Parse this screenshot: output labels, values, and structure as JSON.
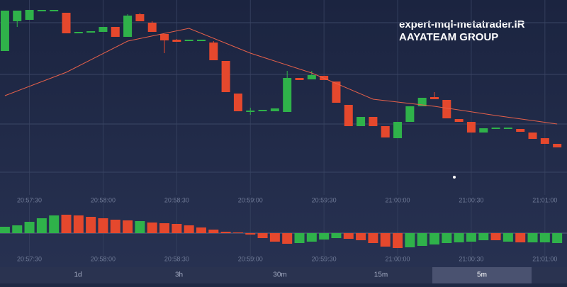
{
  "chart_data": [
    {
      "type": "candlestick",
      "annotations": [
        "expert-mql-metatrader.IR",
        "AAYATEAM GROUP"
      ],
      "x": [
        75440,
        75445,
        75450,
        75455,
        75460,
        75465,
        75470,
        75475,
        75480,
        75485,
        75490,
        75495,
        75500,
        75505,
        75510,
        75515,
        75520,
        75525,
        75530,
        75535,
        75540,
        75545,
        75550,
        75555,
        75560,
        75565,
        75570,
        75575,
        75580,
        75585,
        75590,
        75595,
        75600,
        75605,
        75610,
        75615,
        75620,
        75625,
        75630,
        75635,
        75640,
        75645,
        75650,
        75655,
        75660,
        75665
      ],
      "open": [
        228,
        270,
        272,
        285,
        285,
        282,
        254,
        255,
        255,
        262,
        248,
        280,
        268,
        252,
        244,
        243,
        243,
        240,
        214,
        168,
        143,
        144,
        143,
        142,
        190,
        188,
        193,
        185,
        152,
        122,
        135,
        122,
        105,
        128,
        150,
        163,
        159,
        132,
        128,
        113,
        119,
        119,
        118,
        113,
        105,
        97
      ],
      "high": [
        285,
        285,
        286,
        285,
        285,
        282,
        254,
        255,
        262,
        262,
        280,
        282,
        270,
        252,
        245,
        243,
        243,
        242,
        214,
        168,
        148,
        144,
        147,
        200,
        190,
        200,
        193,
        185,
        152,
        135,
        135,
        122,
        128,
        150,
        162,
        170,
        159,
        132,
        128,
        119,
        119,
        119,
        118,
        113,
        105,
        97
      ],
      "low": [
        228,
        262,
        272,
        285,
        285,
        253,
        254,
        255,
        255,
        248,
        248,
        270,
        255,
        225,
        241,
        243,
        243,
        215,
        170,
        143,
        138,
        144,
        143,
        142,
        187,
        188,
        187,
        155,
        122,
        122,
        122,
        106,
        105,
        128,
        150,
        160,
        133,
        128,
        113,
        113,
        119,
        119,
        114,
        104,
        97,
        92
      ],
      "close": [
        285,
        285,
        286,
        285,
        285,
        253,
        254,
        255,
        262,
        248,
        278,
        270,
        255,
        243,
        241,
        243,
        243,
        215,
        170,
        143,
        144,
        144,
        147,
        190,
        187,
        194,
        187,
        155,
        122,
        135,
        122,
        106,
        128,
        150,
        162,
        160,
        133,
        128,
        113,
        119,
        119,
        119,
        114,
        104,
        97,
        92
      ],
      "up_color": "#2fb24a",
      "down_color": "#e5482d",
      "ma": {
        "color": "#e5604a",
        "x": [
          75440,
          75465,
          75490,
          75515,
          75540,
          75565,
          75590,
          75615,
          75640,
          75665
        ],
        "values": [
          165,
          198,
          242,
          260,
          225,
          197,
          160,
          150,
          137,
          125
        ]
      },
      "xlim": [
        75438,
        75669
      ],
      "ylim": [
        25,
        300
      ],
      "xticks": [
        {
          "value": 75450,
          "label": "20:57:30"
        },
        {
          "value": 75480,
          "label": "20:58:00"
        },
        {
          "value": 75510,
          "label": "20:58:30"
        },
        {
          "value": 75540,
          "label": "20:59:00"
        },
        {
          "value": 75570,
          "label": "20:59:30"
        },
        {
          "value": 75600,
          "label": "21:00:00"
        },
        {
          "value": 75630,
          "label": "21:00:30"
        },
        {
          "value": 75660,
          "label": "21:01:00"
        }
      ],
      "ygrid": [
        268,
        195,
        125,
        57
      ]
    },
    {
      "type": "bar",
      "x": [
        75440,
        75445,
        75450,
        75455,
        75460,
        75465,
        75470,
        75475,
        75480,
        75485,
        75490,
        75495,
        75500,
        75505,
        75510,
        75515,
        75520,
        75525,
        75530,
        75535,
        75540,
        75545,
        75550,
        75555,
        75560,
        75565,
        75570,
        75575,
        75580,
        75585,
        75590,
        75595,
        75600,
        75605,
        75610,
        75615,
        75620,
        75625,
        75630,
        75635,
        75640,
        75645,
        75650,
        75655,
        75660,
        75665
      ],
      "values": [
        9,
        11,
        16,
        21,
        25,
        26,
        25,
        23,
        21,
        19,
        18,
        17,
        15,
        14,
        13,
        11,
        8,
        5,
        2,
        1,
        -2,
        -7,
        -12,
        -15,
        -14,
        -12,
        -9,
        -7,
        -8,
        -10,
        -14,
        -19,
        -21,
        -20,
        -18,
        -16,
        -14,
        -13,
        -12,
        -10,
        -10,
        -12,
        -13,
        -13,
        -13,
        -14
      ],
      "colors": [
        "#2fb24a",
        "#2fb24a",
        "#2fb24a",
        "#2fb24a",
        "#2fb24a",
        "#e5482d",
        "#e5482d",
        "#e5482d",
        "#e5482d",
        "#e5482d",
        "#e5482d",
        "#2fb24a",
        "#e5482d",
        "#e5482d",
        "#e5482d",
        "#e5482d",
        "#e5482d",
        "#e5482d",
        "#e5482d",
        "#e5482d",
        "#e5482d",
        "#e5482d",
        "#e5482d",
        "#e5482d",
        "#2fb24a",
        "#2fb24a",
        "#2fb24a",
        "#2fb24a",
        "#e5482d",
        "#e5482d",
        "#e5482d",
        "#e5482d",
        "#e5482d",
        "#2fb24a",
        "#2fb24a",
        "#2fb24a",
        "#2fb24a",
        "#2fb24a",
        "#2fb24a",
        "#2fb24a",
        "#e5482d",
        "#2fb24a",
        "#e5482d",
        "#2fb24a",
        "#2fb24a",
        "#2fb24a"
      ],
      "xlim": [
        75438,
        75669
      ],
      "ylim": [
        -41,
        44
      ],
      "xticks": [
        {
          "value": 75450,
          "label": "20:57:30"
        },
        {
          "value": 75480,
          "label": "20:58:00"
        },
        {
          "value": 75510,
          "label": "20:58:30"
        },
        {
          "value": 75540,
          "label": "20:59:00"
        },
        {
          "value": 75570,
          "label": "20:59:30"
        },
        {
          "value": 75600,
          "label": "21:00:00"
        },
        {
          "value": 75630,
          "label": "21:00:30"
        },
        {
          "value": 75660,
          "label": "21:01:00"
        }
      ]
    }
  ],
  "ui": {
    "tabs": [
      "1d",
      "3h",
      "30m",
      "15m",
      "5m"
    ],
    "selected": 4
  }
}
